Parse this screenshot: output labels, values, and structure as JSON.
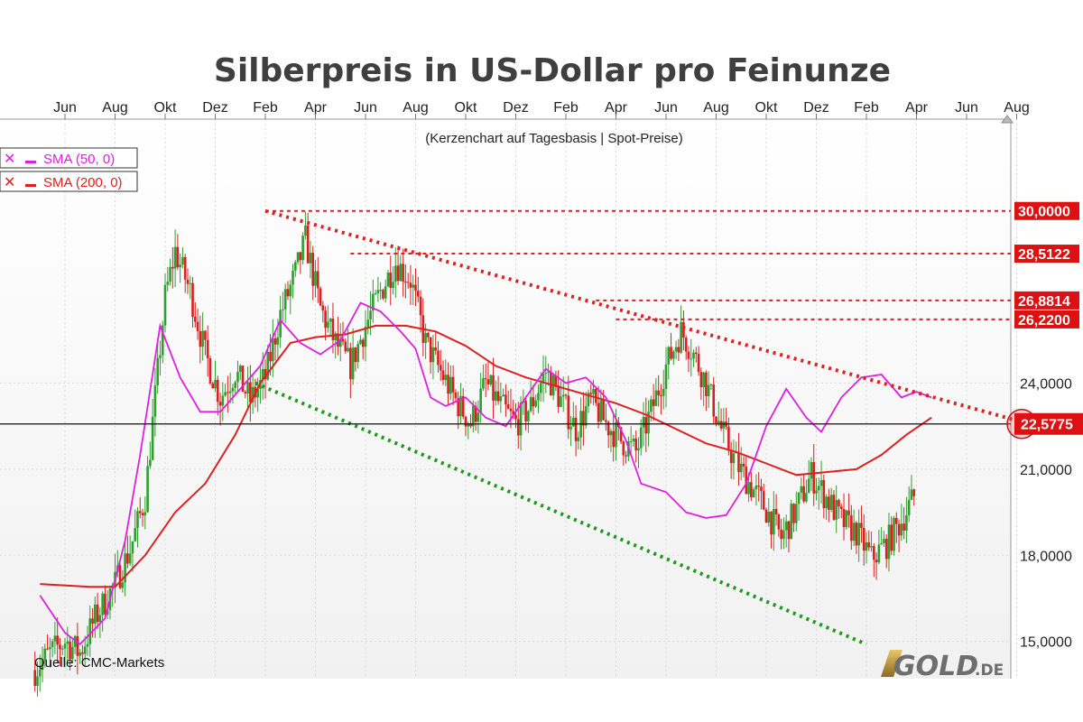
{
  "chart_data": {
    "type": "candlestick",
    "title": "Silberpreis in US-Dollar pro Feinunze",
    "subtitle": "(Kerzenchart auf Tagesbasis | Spot-Preise)",
    "source": "Quelle: CMC-Markets",
    "logo": {
      "main": "GOLD",
      "suffix": ".DE"
    },
    "x_tick_labels": [
      "Jun",
      "Aug",
      "Okt",
      "Dez",
      "Feb",
      "Apr",
      "Jun",
      "Aug",
      "Okt",
      "Dez",
      "Feb",
      "Apr",
      "Jun",
      "Aug",
      "Okt",
      "Dez",
      "Feb",
      "Apr",
      "Jun",
      "Aug"
    ],
    "y_ticks": [
      {
        "value": 15,
        "label": "15,0000"
      },
      {
        "value": 18,
        "label": "18,0000"
      },
      {
        "value": 21,
        "label": "21,0000"
      },
      {
        "value": 24,
        "label": "24,0000"
      }
    ],
    "ylim": [
      13.7,
      33.2
    ],
    "grid": true,
    "legend_placement": "top-left",
    "legend": [
      {
        "label": "SMA (50, 0)",
        "color": "#e020e0"
      },
      {
        "label": "SMA (200, 0)",
        "color": "#dd2020"
      }
    ],
    "current_price": {
      "value": 22.5775,
      "label": "22,5775"
    },
    "resistance_levels": [
      {
        "value": 30.0,
        "label": "30,0000"
      },
      {
        "value": 28.5122,
        "label": "28,5122"
      },
      {
        "value": 26.8814,
        "label": "26,8814"
      },
      {
        "value": 26.22,
        "label": "26,2200"
      }
    ],
    "trendlines": [
      {
        "name": "upper",
        "color": "#e02020",
        "start": {
          "month_index": 4.0,
          "value": 30.0
        },
        "end": {
          "month_index": 19.2,
          "value": 22.6
        }
      },
      {
        "name": "lower",
        "color": "#1a9a1a",
        "start": {
          "month_index": 3.8,
          "value": 24.0
        },
        "end": {
          "month_index": 16.0,
          "value": 14.9
        }
      }
    ],
    "series": [
      {
        "name": "SMA (50, 0)",
        "color": "#e020e0",
        "points": [
          [
            -0.5,
            16.6
          ],
          [
            0.0,
            15.3
          ],
          [
            0.3,
            14.9
          ],
          [
            0.8,
            15.8
          ],
          [
            1.2,
            18.5
          ],
          [
            1.5,
            21.5
          ],
          [
            1.9,
            26.0
          ],
          [
            2.3,
            24.2
          ],
          [
            2.7,
            23.0
          ],
          [
            3.1,
            23.0
          ],
          [
            3.5,
            23.8
          ],
          [
            3.9,
            24.6
          ],
          [
            4.3,
            26.2
          ],
          [
            4.7,
            25.4
          ],
          [
            5.1,
            25.0
          ],
          [
            5.5,
            25.5
          ],
          [
            5.9,
            26.8
          ],
          [
            6.3,
            26.5
          ],
          [
            6.7,
            25.8
          ],
          [
            7.0,
            25.2
          ],
          [
            7.3,
            23.5
          ],
          [
            7.6,
            23.2
          ],
          [
            8.0,
            23.5
          ],
          [
            8.4,
            22.8
          ],
          [
            8.8,
            22.5
          ],
          [
            9.2,
            23.5
          ],
          [
            9.6,
            24.5
          ],
          [
            10.0,
            24.0
          ],
          [
            10.4,
            24.2
          ],
          [
            10.8,
            23.5
          ],
          [
            11.2,
            22.0
          ],
          [
            11.5,
            20.5
          ],
          [
            12.0,
            20.2
          ],
          [
            12.4,
            19.5
          ],
          [
            12.8,
            19.3
          ],
          [
            13.2,
            19.4
          ],
          [
            13.6,
            20.5
          ],
          [
            14.0,
            22.5
          ],
          [
            14.4,
            23.8
          ],
          [
            14.8,
            22.8
          ],
          [
            15.1,
            22.3
          ],
          [
            15.5,
            23.5
          ],
          [
            15.9,
            24.2
          ],
          [
            16.3,
            24.3
          ],
          [
            16.7,
            23.5
          ],
          [
            17.0,
            23.7
          ],
          [
            17.3,
            23.5
          ]
        ]
      },
      {
        "name": "SMA (200, 0)",
        "color": "#dd2020",
        "points": [
          [
            -0.5,
            17.0
          ],
          [
            0.5,
            16.9
          ],
          [
            1.0,
            16.9
          ],
          [
            1.6,
            18.0
          ],
          [
            2.2,
            19.5
          ],
          [
            2.8,
            20.5
          ],
          [
            3.4,
            22.2
          ],
          [
            3.9,
            24.0
          ],
          [
            4.5,
            25.4
          ],
          [
            5.0,
            25.6
          ],
          [
            5.6,
            25.7
          ],
          [
            6.2,
            26.0
          ],
          [
            6.8,
            26.0
          ],
          [
            7.4,
            25.8
          ],
          [
            8.0,
            25.3
          ],
          [
            8.6,
            24.6
          ],
          [
            9.2,
            24.2
          ],
          [
            9.8,
            23.9
          ],
          [
            10.4,
            23.6
          ],
          [
            11.0,
            23.3
          ],
          [
            11.6,
            22.9
          ],
          [
            12.2,
            22.4
          ],
          [
            12.8,
            21.9
          ],
          [
            13.4,
            21.6
          ],
          [
            14.0,
            21.2
          ],
          [
            14.6,
            20.8
          ],
          [
            15.2,
            20.9
          ],
          [
            15.8,
            21.0
          ],
          [
            16.3,
            21.5
          ],
          [
            16.8,
            22.2
          ],
          [
            17.3,
            22.8
          ]
        ]
      },
      {
        "name": "Kerzen",
        "color": "#33a033",
        "points": [
          [
            -0.6,
            14.0
          ],
          [
            -0.3,
            14.6
          ],
          [
            0.0,
            15.0
          ],
          [
            0.3,
            14.6
          ],
          [
            0.6,
            15.8
          ],
          [
            1.0,
            17.0
          ],
          [
            1.3,
            18.2
          ],
          [
            1.6,
            20.0
          ],
          [
            1.8,
            23.5
          ],
          [
            2.0,
            27.0
          ],
          [
            2.2,
            28.6
          ],
          [
            2.5,
            27.2
          ],
          [
            2.8,
            25.0
          ],
          [
            3.1,
            23.5
          ],
          [
            3.4,
            24.4
          ],
          [
            3.7,
            23.4
          ],
          [
            4.0,
            24.2
          ],
          [
            4.3,
            26.4
          ],
          [
            4.6,
            27.8
          ],
          [
            4.8,
            29.0
          ],
          [
            5.1,
            26.6
          ],
          [
            5.4,
            25.4
          ],
          [
            5.7,
            24.6
          ],
          [
            6.0,
            26.0
          ],
          [
            6.3,
            27.2
          ],
          [
            6.6,
            28.2
          ],
          [
            6.9,
            27.6
          ],
          [
            7.2,
            25.4
          ],
          [
            7.5,
            24.4
          ],
          [
            7.8,
            23.4
          ],
          [
            8.1,
            22.6
          ],
          [
            8.4,
            24.0
          ],
          [
            8.7,
            23.2
          ],
          [
            9.0,
            22.6
          ],
          [
            9.3,
            23.2
          ],
          [
            9.6,
            24.4
          ],
          [
            9.9,
            23.4
          ],
          [
            10.2,
            22.4
          ],
          [
            10.5,
            23.4
          ],
          [
            10.8,
            22.6
          ],
          [
            11.1,
            22.0
          ],
          [
            11.4,
            21.6
          ],
          [
            11.7,
            23.0
          ],
          [
            12.0,
            24.6
          ],
          [
            12.3,
            25.8
          ],
          [
            12.5,
            25.2
          ],
          [
            12.8,
            24.0
          ],
          [
            13.1,
            22.4
          ],
          [
            13.4,
            21.2
          ],
          [
            13.7,
            20.4
          ],
          [
            14.0,
            19.6
          ],
          [
            14.3,
            18.6
          ],
          [
            14.6,
            19.6
          ],
          [
            14.9,
            20.8
          ],
          [
            15.2,
            20.0
          ],
          [
            15.5,
            19.2
          ],
          [
            15.8,
            18.8
          ],
          [
            16.1,
            17.9
          ],
          [
            16.4,
            18.4
          ],
          [
            16.7,
            19.2
          ],
          [
            17.0,
            20.2
          ]
        ]
      }
    ]
  }
}
